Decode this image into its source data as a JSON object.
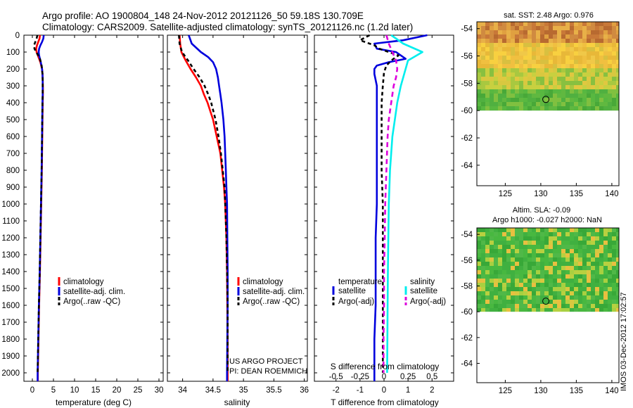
{
  "header": {
    "title_line1": "Argo profile: AO 1900804_148 24-Nov-2012 20121126_50 59.18S 130.709E",
    "title_line2": "Climatology: CARS2009. Satellite-adjusted climatology: synTS_20121126.nc (1.2d later)"
  },
  "colors": {
    "climatology": "#ff0000",
    "satellite": "#0000dd",
    "argo": "#000000",
    "salinity_satellite": "#00eeee",
    "salinity_argo": "#dd00dd"
  },
  "depth_ticks": [
    "0",
    "100",
    "200",
    "300",
    "400",
    "500",
    "600",
    "700",
    "800",
    "900",
    "1000",
    "1100",
    "1200",
    "1300",
    "1400",
    "1500",
    "1600",
    "1700",
    "1800",
    "1900",
    "2000"
  ],
  "chart_data": [
    {
      "type": "line",
      "id": "temperature",
      "xlabel": "temperature (deg C)",
      "xlim": [
        -2,
        31
      ],
      "ylim": [
        2050,
        0
      ],
      "xticks": [
        "0",
        "5",
        "10",
        "15",
        "20",
        "25",
        "30"
      ],
      "xtick_values": [
        0,
        5,
        10,
        15,
        20,
        25,
        30
      ],
      "legend": [
        "climatology",
        "satellite-adj. clim.",
        "Argo(..raw -QC)"
      ],
      "series": [
        {
          "name": "climatology",
          "color": "#ff0000",
          "dash": "",
          "depth": [
            0,
            20,
            40,
            60,
            80,
            100,
            120,
            140,
            160,
            180,
            200,
            230,
            260,
            300,
            350,
            400,
            500,
            600,
            800,
            1000,
            1200,
            1400,
            1600,
            1800,
            2000,
            2050
          ],
          "values": [
            1.8,
            1.7,
            1.4,
            1.1,
            0.9,
            1.0,
            1.3,
            1.6,
            1.9,
            2.1,
            2.3,
            2.4,
            2.45,
            2.5,
            2.5,
            2.45,
            2.4,
            2.35,
            2.25,
            2.1,
            1.95,
            1.8,
            1.6,
            1.45,
            1.3,
            1.3
          ]
        },
        {
          "name": "satellite-adj. clim.",
          "color": "#0000dd",
          "dash": "",
          "depth": [
            0,
            20,
            40,
            60,
            80,
            100,
            120,
            140,
            160,
            180,
            200,
            230,
            260,
            300,
            350,
            400,
            500,
            600,
            800,
            1000,
            1200,
            1400,
            1600,
            1800,
            2000,
            2050
          ],
          "values": [
            2.7,
            2.6,
            2.3,
            1.9,
            1.6,
            1.5,
            1.6,
            1.8,
            2.0,
            2.15,
            2.3,
            2.4,
            2.45,
            2.45,
            2.45,
            2.4,
            2.35,
            2.3,
            2.2,
            2.05,
            1.9,
            1.75,
            1.55,
            1.4,
            1.25,
            1.25
          ]
        },
        {
          "name": "Argo(..raw -QC)",
          "color": "#000000",
          "dash": "5,4",
          "depth": [
            0,
            20,
            40,
            60,
            80,
            100,
            120,
            140,
            160,
            180,
            200,
            230,
            260,
            300,
            350,
            400,
            500,
            600,
            800,
            1000,
            1200,
            1400,
            1600,
            1800,
            2000
          ],
          "values": [
            1.2,
            1.0,
            0.7,
            0.4,
            0.5,
            0.9,
            1.4,
            1.8,
            2.0,
            2.2,
            2.3,
            2.4,
            2.45,
            2.45,
            2.45,
            2.4,
            2.35,
            2.3,
            2.2,
            2.05,
            1.9,
            1.75,
            1.55,
            1.4,
            1.25
          ]
        }
      ]
    },
    {
      "type": "line",
      "id": "salinity",
      "xlabel": "salinity",
      "xlim": [
        33.75,
        36.05
      ],
      "ylim": [
        2050,
        0
      ],
      "xticks": [
        "34",
        "34.5",
        "35",
        "35.5",
        "36"
      ],
      "xtick_values": [
        34,
        34.5,
        35,
        35.5,
        36
      ],
      "legend": [
        "climatology",
        "satellite-adj. clim.",
        "Argo(..raw -QC)"
      ],
      "annotation": [
        "US ARGO PROJECT",
        "PI: DEAN ROEMMICH"
      ],
      "series": [
        {
          "name": "climatology",
          "color": "#ff0000",
          "dash": "",
          "depth": [
            0,
            50,
            100,
            150,
            200,
            250,
            300,
            350,
            400,
            500,
            600,
            700,
            800,
            900,
            1000,
            1200,
            1400,
            1600,
            1800,
            2000,
            2050
          ],
          "values": [
            33.95,
            33.96,
            33.98,
            34.05,
            34.13,
            34.22,
            34.3,
            34.35,
            34.41,
            34.5,
            34.56,
            34.62,
            34.65,
            34.68,
            34.7,
            34.72,
            34.73,
            34.735,
            34.74,
            34.74,
            34.74
          ]
        },
        {
          "name": "satellite-adj. clim.",
          "color": "#0000dd",
          "dash": "",
          "depth": [
            0,
            50,
            100,
            130,
            160,
            200,
            250,
            300,
            350,
            400,
            500,
            600,
            700,
            800,
            900,
            1000,
            1200,
            1400,
            1600,
            1800,
            2000,
            2050
          ],
          "values": [
            34.1,
            34.15,
            34.3,
            34.42,
            34.5,
            34.55,
            34.58,
            34.6,
            34.62,
            34.64,
            34.67,
            34.69,
            34.7,
            34.71,
            34.72,
            34.73,
            34.735,
            34.74,
            34.74,
            34.735,
            34.73,
            34.73
          ]
        },
        {
          "name": "Argo(..raw -QC)",
          "color": "#000000",
          "dash": "5,4",
          "depth": [
            0,
            50,
            100,
            150,
            200,
            250,
            300,
            350,
            400,
            500,
            600,
            700,
            800,
            900,
            1000,
            1200,
            1400,
            1600,
            1800,
            2000
          ],
          "values": [
            33.94,
            33.95,
            33.99,
            34.09,
            34.18,
            34.28,
            34.36,
            34.42,
            34.47,
            34.54,
            34.59,
            34.63,
            34.66,
            34.69,
            34.7,
            34.72,
            34.73,
            34.74,
            34.74,
            34.74
          ]
        }
      ]
    },
    {
      "type": "line",
      "id": "differences",
      "xlabel": "T difference from climatology",
      "top_xlabel": "S difference from climatology",
      "xlim": [
        -2.9,
        2.9
      ],
      "ylim": [
        2050,
        0
      ],
      "xticks": [
        "-2",
        "-1",
        "0",
        "1",
        "2"
      ],
      "xtick_values": [
        -2,
        -1,
        0,
        1,
        2
      ],
      "top_xticks": [
        "-0.5",
        "-0.25",
        "0",
        "0.25",
        "0.5"
      ],
      "top_xtick_positions": [
        -2,
        -1,
        0,
        1,
        2
      ],
      "legend_temperature_title": "temperature",
      "legend_salinity_title": "salinity",
      "legend": [
        "satellite",
        "Argo(-adj)",
        "satellite",
        "Argo(-adj)"
      ],
      "series": [
        {
          "name": "temperature satellite",
          "color": "#0000dd",
          "dash": "",
          "depth": [
            0,
            30,
            50,
            80,
            100,
            140,
            160,
            180,
            200,
            230,
            300,
            400,
            600,
            800,
            1000,
            1200,
            1400,
            1600,
            1800,
            2000,
            2050
          ],
          "values": [
            1.8,
            0.8,
            -0.4,
            -0.3,
            0.5,
            0.9,
            0.2,
            -0.3,
            -0.4,
            -0.4,
            -0.3,
            -0.3,
            -0.3,
            -0.3,
            -0.3,
            -0.35,
            -0.35,
            -0.35,
            -0.4,
            -0.4,
            -0.4
          ]
        },
        {
          "name": "temperature Argo(-adj)",
          "color": "#000000",
          "dash": "5,4",
          "depth": [
            0,
            30,
            60,
            80,
            100,
            120,
            150,
            180,
            220,
            300,
            400,
            600,
            800,
            1000,
            1200,
            1400,
            1600,
            1800,
            2000
          ],
          "values": [
            -0.6,
            -1.0,
            -0.4,
            -0.2,
            0.2,
            0.6,
            0.3,
            0.1,
            0.0,
            -0.05,
            -0.1,
            -0.1,
            -0.1,
            -0.05,
            -0.05,
            -0.05,
            -0.05,
            -0.05,
            -0.05
          ]
        },
        {
          "name": "salinity satellite",
          "color": "#00eeee",
          "dash": "",
          "depth": [
            0,
            50,
            100,
            150,
            200,
            250,
            300,
            400,
            500,
            600,
            700,
            800,
            1000,
            1200,
            1400,
            1600,
            1800,
            2000
          ],
          "values": [
            0.3,
            0.8,
            1.6,
            1.0,
            0.9,
            0.8,
            0.7,
            0.55,
            0.45,
            0.35,
            0.3,
            0.25,
            0.2,
            0.18,
            0.16,
            0.15,
            0.14,
            0.13
          ]
        },
        {
          "name": "salinity Argo(-adj)",
          "color": "#dd00dd",
          "dash": "7,5",
          "depth": [
            0,
            50,
            100,
            150,
            200,
            250,
            300,
            400,
            500,
            600,
            800,
            1000,
            1200,
            1400,
            1600,
            1800,
            2000
          ],
          "values": [
            0.1,
            0.2,
            0.35,
            0.5,
            0.55,
            0.5,
            0.4,
            0.3,
            0.2,
            0.15,
            0.1,
            0.05,
            0.03,
            0.0,
            0.0,
            -0.02,
            -0.02
          ]
        }
      ]
    },
    {
      "type": "heatmap",
      "id": "sst_map",
      "title": "sat. SST: 2.48 Argo: 0.976",
      "xlim": [
        121,
        141
      ],
      "ylim": [
        -65.5,
        -53.5
      ],
      "xticks": [
        "125",
        "130",
        "135",
        "140"
      ],
      "xtick_values": [
        125,
        130,
        135,
        140
      ],
      "yticks": [
        "-54",
        "-56",
        "-58",
        "-60",
        "-62",
        "-64"
      ],
      "ytick_values": [
        -54,
        -56,
        -58,
        -60,
        -62,
        -64
      ],
      "data_lat_range": [
        -60,
        -53.5
      ],
      "marker": {
        "lon": 130.709,
        "lat": -59.18
      }
    },
    {
      "type": "heatmap",
      "id": "sla_map",
      "title_line1": "Altim. SLA: -0.09",
      "title_line2": "Argo h1000: -0.027 h2000: NaN",
      "xlim": [
        121,
        141
      ],
      "ylim": [
        -65.5,
        -53.5
      ],
      "xticks": [
        "125",
        "130",
        "135",
        "140"
      ],
      "xtick_values": [
        125,
        130,
        135,
        140
      ],
      "yticks": [
        "-54",
        "-56",
        "-58",
        "-60",
        "-62",
        "-64"
      ],
      "ytick_values": [
        -54,
        -56,
        -58,
        -60,
        -62,
        -64
      ],
      "data_lat_range": [
        -60,
        -53.5
      ],
      "marker": {
        "lon": 130.709,
        "lat": -59.18
      }
    }
  ],
  "footer": {
    "imos_stamp": "IMOS 03-Dec-2012 17:02:57"
  }
}
